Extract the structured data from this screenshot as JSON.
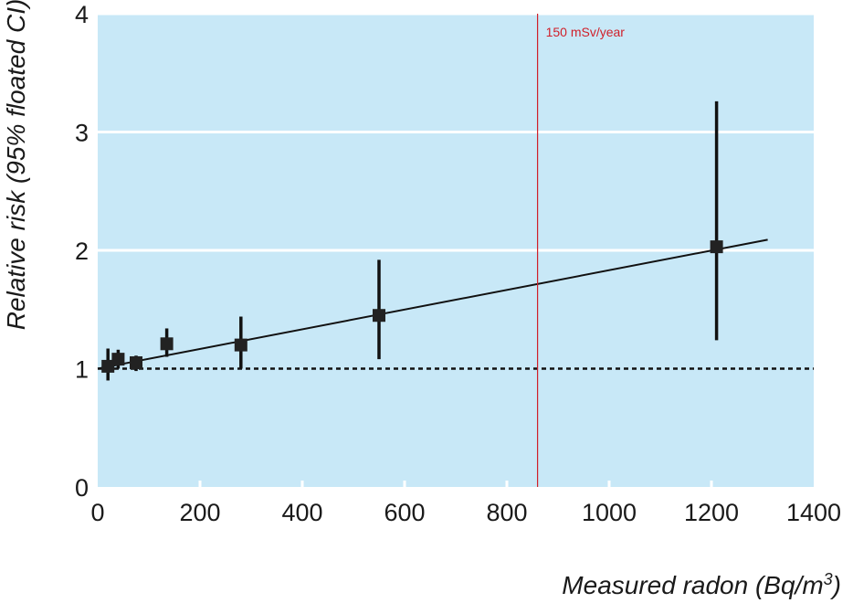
{
  "chart_data": {
    "type": "scatter",
    "title": "",
    "xlabel": "Measured radon (Bq/m",
    "xlabel_sup": "3",
    "xlabel_close": ")",
    "ylabel": "Relative risk (95% floated CI)",
    "xlim": [
      0,
      1400
    ],
    "ylim": [
      0,
      4
    ],
    "x_ticks": [
      "0",
      "200",
      "400",
      "600",
      "800",
      "1000",
      "1200",
      "1400"
    ],
    "y_ticks": [
      "0",
      "1",
      "2",
      "3",
      "4"
    ],
    "background_color": "#c8e8f7",
    "gridlines": "horizontal white",
    "points": [
      {
        "x": 20,
        "y": 1.02,
        "ci_low": 0.9,
        "ci_high": 1.17
      },
      {
        "x": 40,
        "y": 1.08,
        "ci_low": 1.0,
        "ci_high": 1.16
      },
      {
        "x": 75,
        "y": 1.05,
        "ci_low": 0.98,
        "ci_high": 1.11
      },
      {
        "x": 135,
        "y": 1.21,
        "ci_low": 1.1,
        "ci_high": 1.34
      },
      {
        "x": 280,
        "y": 1.2,
        "ci_low": 1.0,
        "ci_high": 1.44
      },
      {
        "x": 550,
        "y": 1.45,
        "ci_low": 1.08,
        "ci_high": 1.92
      },
      {
        "x": 1210,
        "y": 2.03,
        "ci_low": 1.24,
        "ci_high": 3.26
      }
    ],
    "fit_line": {
      "x": [
        0,
        1310
      ],
      "y": [
        1.0,
        2.09
      ]
    },
    "reference_line": {
      "y": 1,
      "style": "dashed"
    },
    "vline": {
      "x": 860,
      "label": "150 mSv/year",
      "color": "#d0202a"
    }
  }
}
